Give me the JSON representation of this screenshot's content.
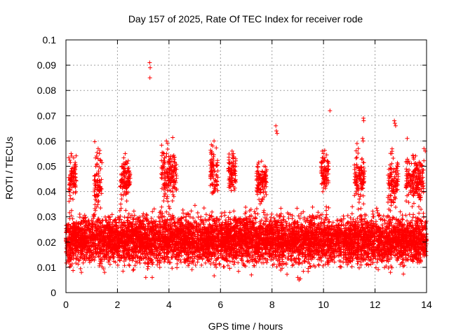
{
  "chart_data": {
    "type": "scatter",
    "title": "Day 157 of 2025, Rate Of TEC Index for receiver rode",
    "xlabel": "GPS time / hours",
    "ylabel": "ROTI / TECUs",
    "xlim": [
      0,
      14
    ],
    "ylim": [
      0,
      0.1
    ],
    "xticks": [
      0,
      2,
      4,
      6,
      8,
      10,
      12,
      14
    ],
    "xtick_labels": [
      "0",
      "2",
      "4",
      "6",
      "8",
      "10",
      "12",
      "14"
    ],
    "yticks": [
      0,
      0.01,
      0.02,
      0.03,
      0.04,
      0.05,
      0.06,
      0.07,
      0.08,
      0.09,
      0.1
    ],
    "ytick_labels": [
      "0",
      "0.01",
      "0.02",
      "0.03",
      "0.04",
      "0.05",
      "0.06",
      "0.07",
      "0.08",
      "0.09",
      "0.1"
    ],
    "grid": true,
    "marker": "+",
    "color": "#ff0000",
    "series": [
      {
        "name": "ROTI",
        "description_of_bulk": "dense cloud of points between about 0.01 and 0.035 across 0-14 h",
        "points": [
          [
            3.25,
            0.091
          ],
          [
            3.27,
            0.089
          ],
          [
            3.26,
            0.085
          ],
          [
            10.25,
            0.072
          ],
          [
            11.55,
            0.069
          ],
          [
            11.56,
            0.068
          ],
          [
            11.52,
            0.061
          ],
          [
            11.54,
            0.06
          ],
          [
            12.75,
            0.068
          ],
          [
            12.77,
            0.067
          ],
          [
            12.8,
            0.066
          ],
          [
            13.25,
            0.061
          ],
          [
            8.15,
            0.066
          ],
          [
            8.17,
            0.064
          ],
          [
            8.2,
            0.063
          ],
          [
            3.9,
            0.06
          ],
          [
            3.95,
            0.059
          ],
          [
            5.75,
            0.06
          ],
          [
            5.7,
            0.058
          ],
          [
            0.2,
            0.055
          ],
          [
            0.22,
            0.054
          ],
          [
            1.25,
            0.057
          ],
          [
            1.3,
            0.055
          ],
          [
            2.3,
            0.055
          ],
          [
            6.45,
            0.056
          ],
          [
            6.5,
            0.055
          ],
          [
            9.95,
            0.056
          ],
          [
            10.0,
            0.055
          ],
          [
            11.3,
            0.059
          ],
          [
            11.35,
            0.057
          ],
          [
            13.9,
            0.057
          ],
          [
            13.95,
            0.056
          ],
          [
            9.05,
            0.005
          ],
          [
            9.0,
            0.006
          ],
          [
            9.1,
            0.0055
          ],
          [
            3.35,
            0.006
          ],
          [
            3.1,
            0.006
          ],
          [
            0.6,
            0.008
          ],
          [
            1.5,
            0.008
          ],
          [
            7.2,
            0.007
          ],
          [
            12.6,
            0.008
          ]
        ]
      }
    ],
    "bulk_clusters": [
      {
        "x": [
          0,
          14
        ],
        "y_center": 0.021,
        "y_spread": 0.009
      },
      {
        "x": [
          0.1,
          0.4
        ],
        "y_center": 0.045,
        "y_spread": 0.008
      },
      {
        "x": [
          1.1,
          1.4
        ],
        "y_center": 0.045,
        "y_spread": 0.01
      },
      {
        "x": [
          2.1,
          2.5
        ],
        "y_center": 0.045,
        "y_spread": 0.008
      },
      {
        "x": [
          3.7,
          4.3
        ],
        "y_center": 0.046,
        "y_spread": 0.01
      },
      {
        "x": [
          5.6,
          5.9
        ],
        "y_center": 0.048,
        "y_spread": 0.009
      },
      {
        "x": [
          6.3,
          6.6
        ],
        "y_center": 0.047,
        "y_spread": 0.008
      },
      {
        "x": [
          7.4,
          7.8
        ],
        "y_center": 0.044,
        "y_spread": 0.007
      },
      {
        "x": [
          9.9,
          10.2
        ],
        "y_center": 0.047,
        "y_spread": 0.008
      },
      {
        "x": [
          11.2,
          11.6
        ],
        "y_center": 0.046,
        "y_spread": 0.009
      },
      {
        "x": [
          12.5,
          12.9
        ],
        "y_center": 0.044,
        "y_spread": 0.009
      },
      {
        "x": [
          13.2,
          13.9
        ],
        "y_center": 0.045,
        "y_spread": 0.009
      }
    ]
  }
}
